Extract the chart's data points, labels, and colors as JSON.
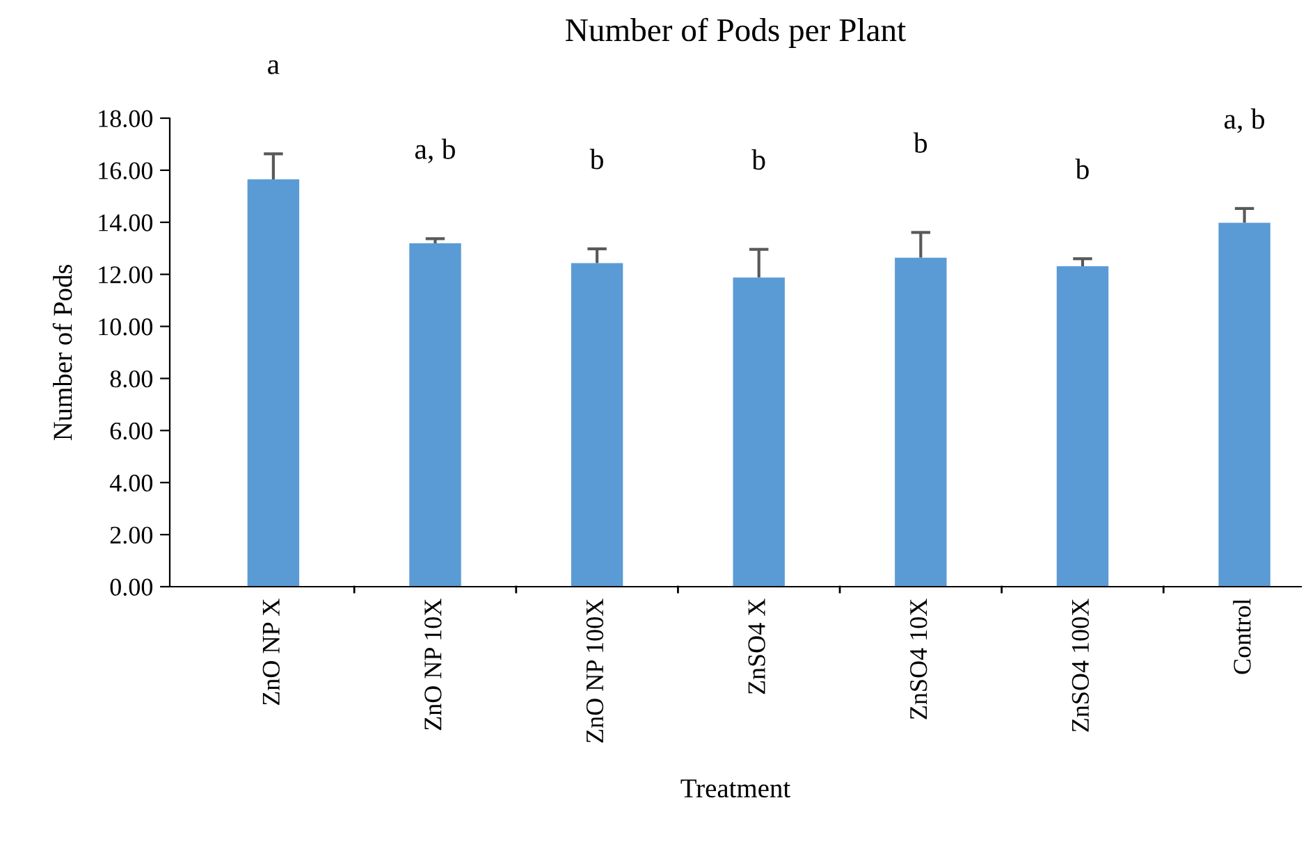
{
  "chart_data": {
    "type": "bar",
    "title": "Number of Pods per Plant",
    "xlabel": "Treatment",
    "ylabel": "Number of Pods",
    "categories": [
      "ZnO NP X",
      "ZnO NP 10X",
      "ZnO NP 100X",
      "ZnSO4 X",
      "ZnSO4 10X",
      "ZnSO4 100X",
      "Control"
    ],
    "values": [
      15.65,
      13.19,
      12.43,
      11.88,
      12.64,
      12.31,
      13.98
    ],
    "errors": [
      [
        15.65,
        16.63
      ],
      [
        13.19,
        13.37
      ],
      [
        12.43,
        12.98
      ],
      [
        11.88,
        12.96
      ],
      [
        12.64,
        13.61
      ],
      [
        12.31,
        12.6
      ],
      [
        13.98,
        14.53
      ]
    ],
    "color": "#5b9bd5",
    "ylim": [
      0,
      18
    ],
    "yticks": [
      {
        "value": 0,
        "label": "0.00"
      },
      {
        "value": 2,
        "label": "2.00"
      },
      {
        "value": 4,
        "label": "4.00"
      },
      {
        "value": 6,
        "label": "6.00"
      },
      {
        "value": 8,
        "label": "8.00"
      },
      {
        "value": 10,
        "label": "10.00"
      },
      {
        "value": 12,
        "label": "12.00"
      },
      {
        "value": 14,
        "label": "14.00"
      },
      {
        "value": 16,
        "label": "16.00"
      },
      {
        "value": 18,
        "label": "18.00"
      }
    ],
    "annotations": [
      "a",
      "a, b",
      "b",
      "b",
      "b",
      "b",
      "a, b"
    ]
  }
}
